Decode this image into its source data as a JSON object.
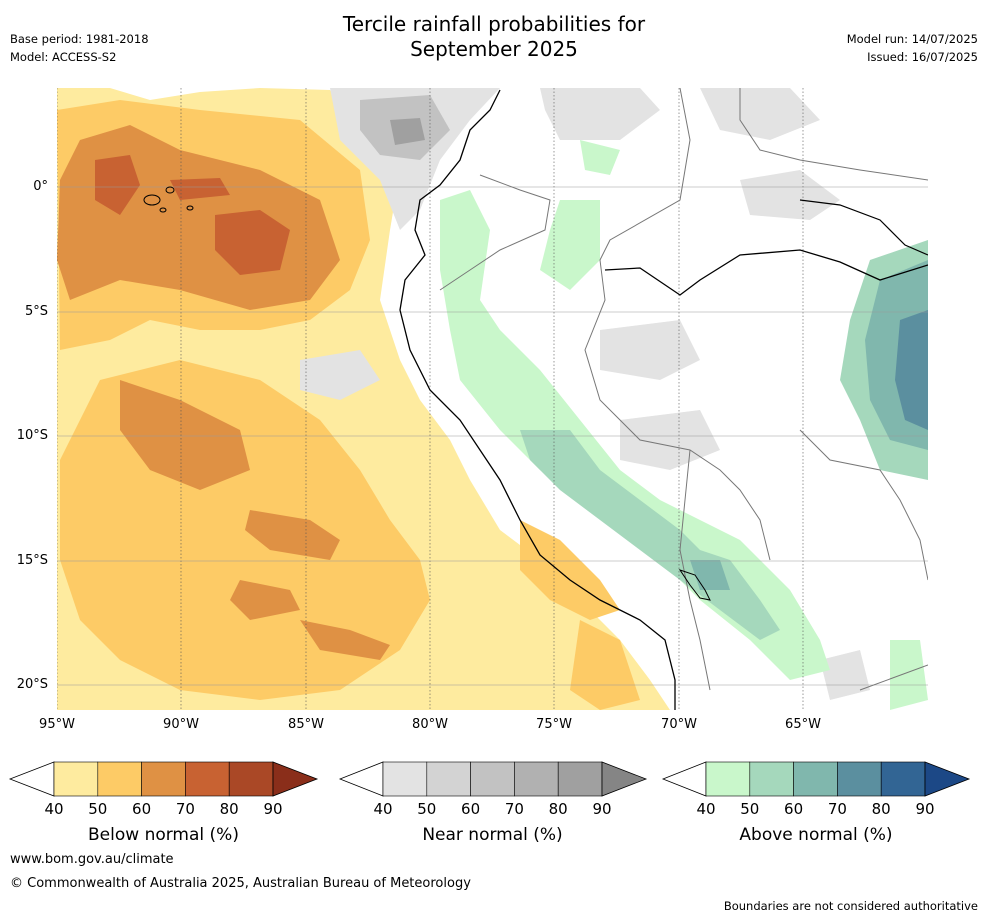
{
  "title_line1": "Tercile rainfall probabilities for",
  "title_line2": "September 2025",
  "base_period": "Base period: 1981-2018",
  "model": "Model: ACCESS-S2",
  "model_run": "Model run: 14/07/2025",
  "issued": "Issued: 16/07/2025",
  "map": {
    "lat_labels": [
      "0°",
      "5°S",
      "10°S",
      "15°S",
      "20°S"
    ],
    "lon_labels": [
      "95°W",
      "90°W",
      "85°W",
      "80°W",
      "75°W",
      "70°W",
      "65°W"
    ],
    "grid_lines": true
  },
  "legends": [
    {
      "title": "Below normal (%)",
      "ticks": [
        "40",
        "50",
        "60",
        "70",
        "80",
        "90"
      ],
      "colors": [
        "#ffffff",
        "#feeb9f",
        "#fdcb66",
        "#df9144",
        "#c86232",
        "#aa4826",
        "#8a2e1a"
      ]
    },
    {
      "title": "Near normal (%)",
      "ticks": [
        "40",
        "50",
        "60",
        "70",
        "80",
        "90"
      ],
      "colors": [
        "#ffffff",
        "#e3e3e3",
        "#d3d3d3",
        "#c2c2c2",
        "#b1b1b1",
        "#a0a0a0",
        "#858585"
      ]
    },
    {
      "title": "Above normal (%)",
      "ticks": [
        "40",
        "50",
        "60",
        "70",
        "80",
        "90"
      ],
      "colors": [
        "#ffffff",
        "#c9f7cb",
        "#a5d8bc",
        "#80b7ad",
        "#5b8f9f",
        "#326594",
        "#1c4886"
      ]
    }
  ],
  "footer_url": "www.bom.gov.au/climate",
  "copyright": "© Commonwealth of Australia 2025, Australian Bureau of Meteorology",
  "disclaimer": "Boundaries are not considered authoritative"
}
